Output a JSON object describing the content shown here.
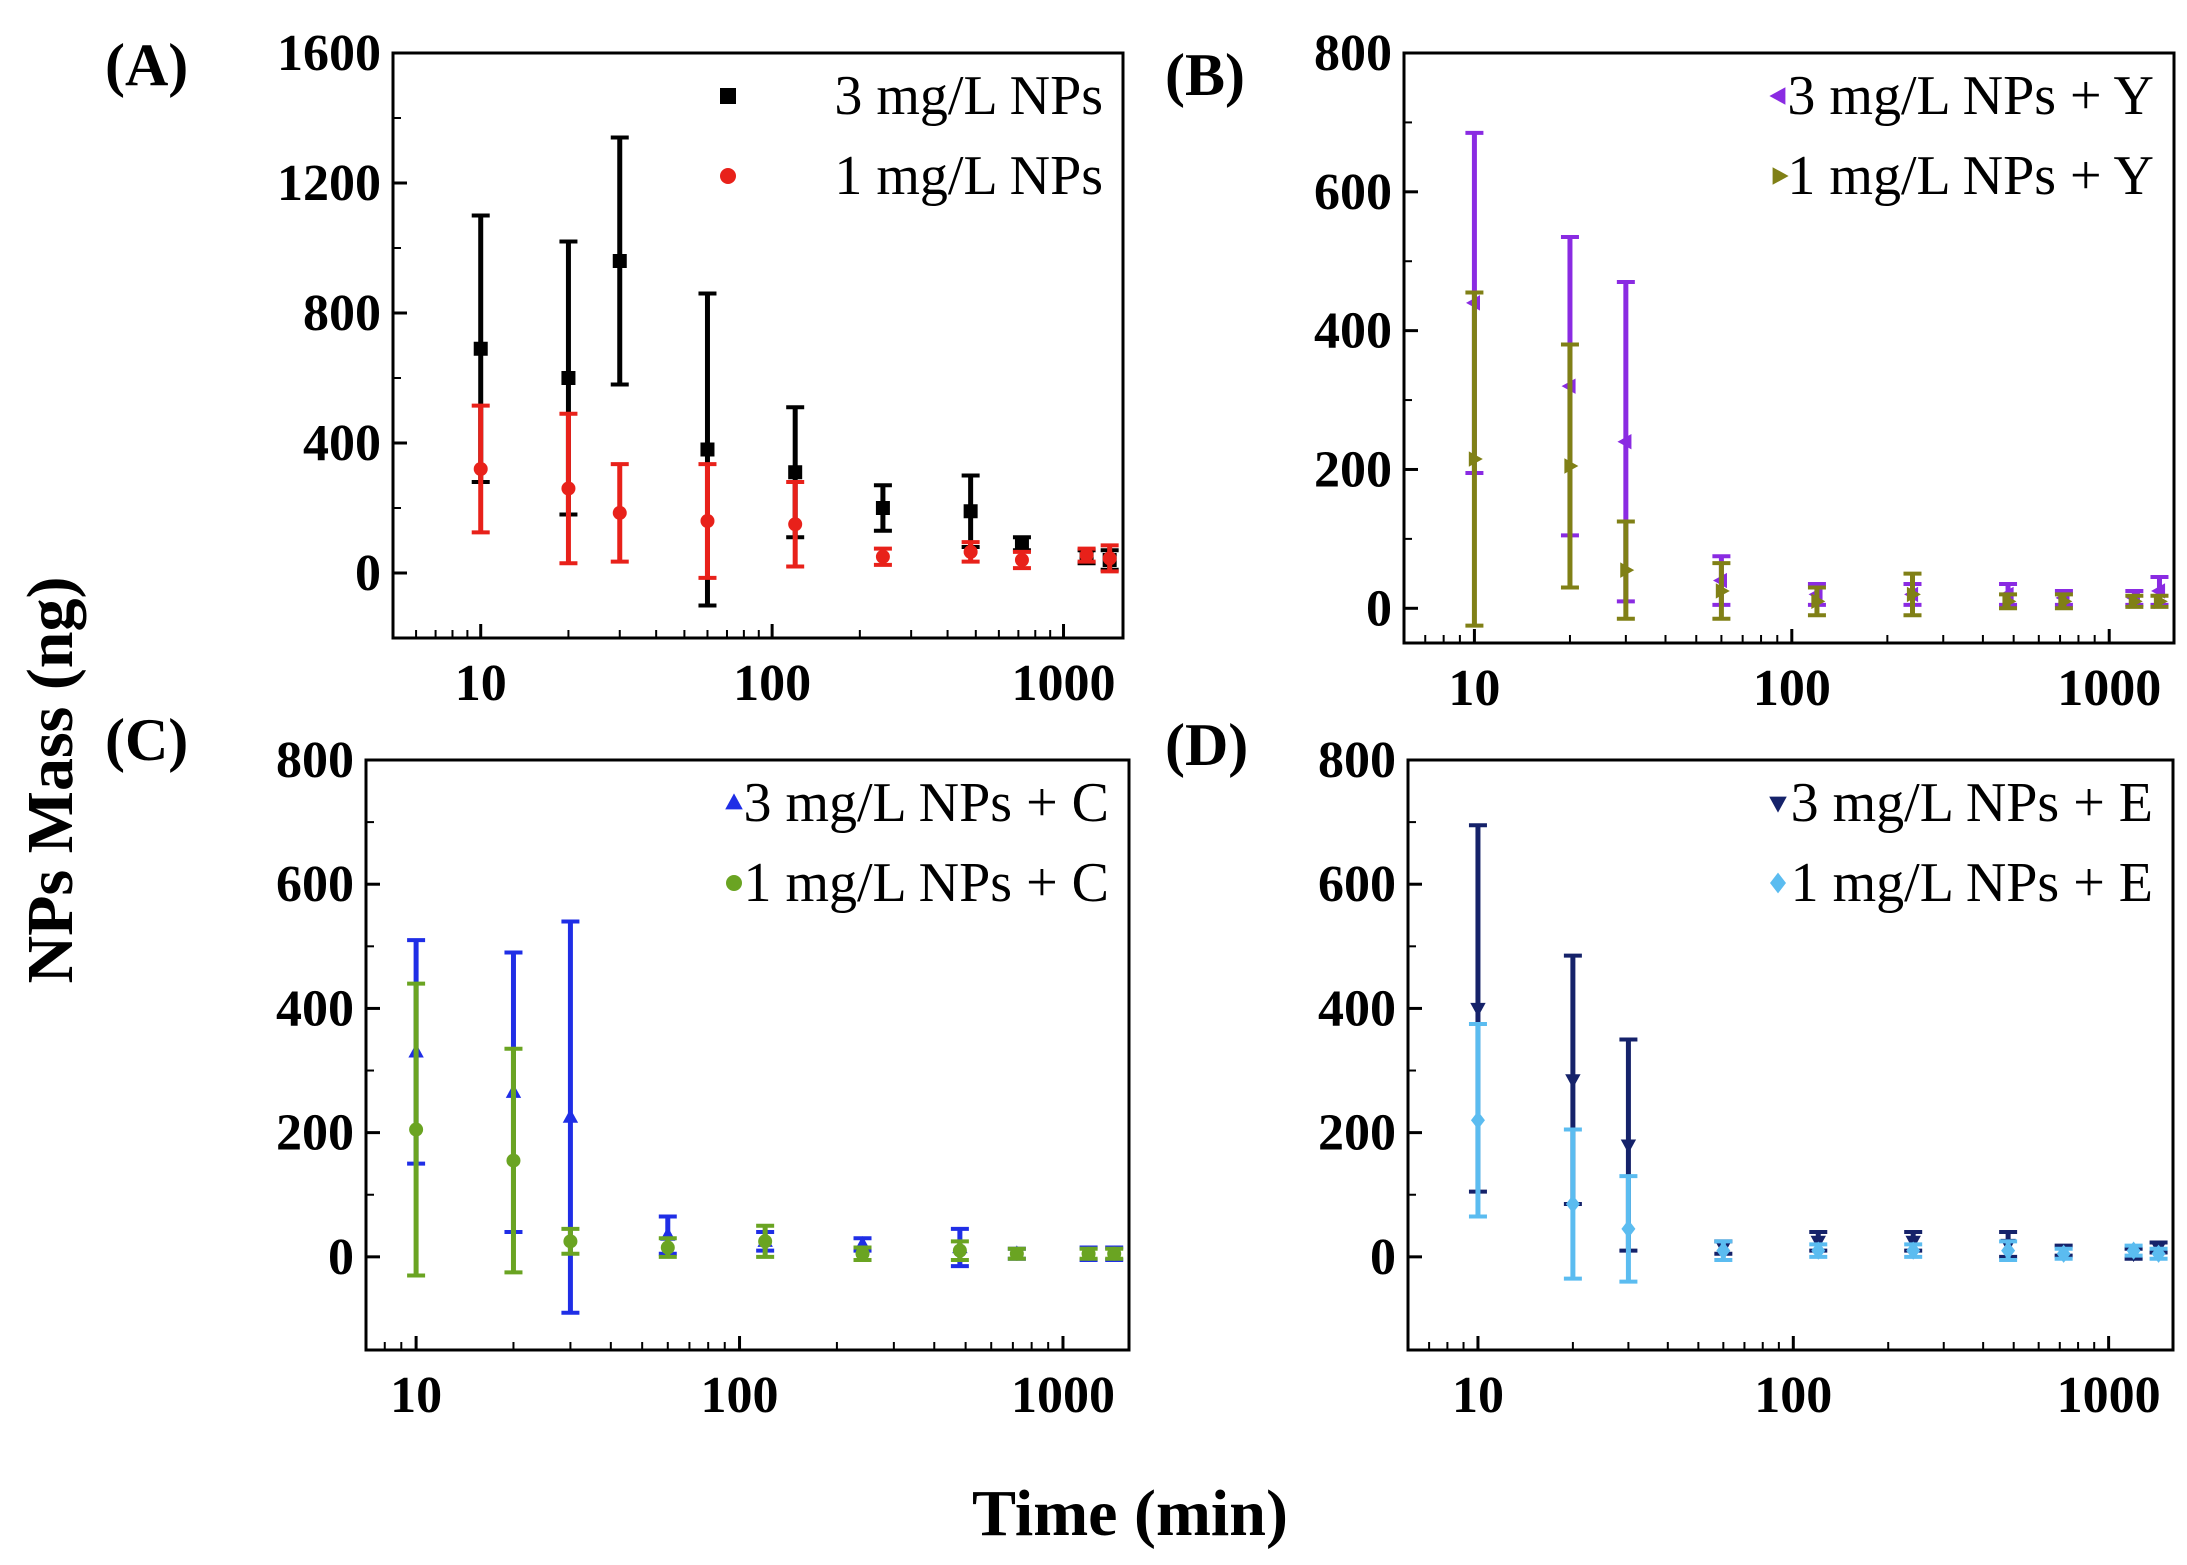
{
  "figure": {
    "xlabel": "Time (min)",
    "ylabel": "NPs Mass (ng)"
  },
  "chart_data": [
    {
      "type": "scatter",
      "panel_label": "(A)",
      "x_scale": "log",
      "xlim": [
        5,
        1600
      ],
      "ylim": [
        -200,
        1600
      ],
      "x_ticks": [
        10,
        100,
        1000
      ],
      "x_tick_labels": [
        "10",
        "100",
        "1000"
      ],
      "y_ticks": [
        0,
        400,
        800,
        1200,
        1600
      ],
      "y_tick_labels": [
        "0",
        "400",
        "800",
        "1200",
        "1600"
      ],
      "legend_position": "top-right",
      "series": [
        {
          "name": "3 mg/L NPs",
          "marker": "square",
          "color": "#000000",
          "x": [
            10,
            20,
            30,
            60,
            120,
            240,
            480,
            720,
            1200,
            1440
          ],
          "y": [
            690,
            600,
            960,
            380,
            310,
            200,
            190,
            90,
            50,
            40
          ],
          "err": [
            410,
            420,
            380,
            480,
            200,
            70,
            110,
            20,
            20,
            30
          ]
        },
        {
          "name": "1 mg/L NPs",
          "marker": "circle",
          "color": "#e8211a",
          "x": [
            10,
            20,
            30,
            60,
            120,
            240,
            480,
            720,
            1200,
            1440
          ],
          "y": [
            320,
            260,
            185,
            160,
            150,
            50,
            65,
            40,
            55,
            45
          ],
          "err": [
            195,
            230,
            150,
            175,
            130,
            25,
            30,
            25,
            20,
            40
          ]
        }
      ]
    },
    {
      "type": "scatter",
      "panel_label": "(B)",
      "x_scale": "log",
      "xlim": [
        6,
        1600
      ],
      "ylim": [
        -50,
        800
      ],
      "x_ticks": [
        10,
        100,
        1000
      ],
      "x_tick_labels": [
        "10",
        "100",
        "1000"
      ],
      "y_ticks": [
        0,
        200,
        400,
        600,
        800
      ],
      "y_tick_labels": [
        "0",
        "200",
        "400",
        "600",
        "800"
      ],
      "legend_position": "top-right",
      "series": [
        {
          "name": "3 mg/L NPs + Y",
          "marker": "triangle-left",
          "color": "#8a2be2",
          "x": [
            10,
            20,
            30,
            60,
            120,
            240,
            480,
            720,
            1200,
            1440
          ],
          "y": [
            440,
            320,
            240,
            40,
            20,
            20,
            20,
            15,
            15,
            25
          ],
          "err": [
            245,
            215,
            230,
            35,
            15,
            15,
            15,
            10,
            10,
            20
          ]
        },
        {
          "name": "1 mg/L NPs + Y",
          "marker": "triangle-right",
          "color": "#808016",
          "x": [
            10,
            20,
            30,
            60,
            120,
            240,
            480,
            720,
            1200,
            1440
          ],
          "y": [
            215,
            205,
            55,
            25,
            10,
            20,
            10,
            10,
            10,
            10
          ],
          "err": [
            240,
            175,
            70,
            40,
            20,
            30,
            10,
            10,
            8,
            8
          ]
        }
      ]
    },
    {
      "type": "scatter",
      "panel_label": "(C)",
      "x_scale": "log",
      "xlim": [
        7,
        1600
      ],
      "ylim": [
        -150,
        800
      ],
      "x_ticks": [
        10,
        100,
        1000
      ],
      "x_tick_labels": [
        "10",
        "100",
        "1000"
      ],
      "y_ticks": [
        0,
        200,
        400,
        600,
        800
      ],
      "y_tick_labels": [
        "0",
        "200",
        "400",
        "600",
        "800"
      ],
      "legend_position": "top-right",
      "series": [
        {
          "name": "3 mg/L NPs + C",
          "marker": "triangle-up",
          "color": "#1f2ee6",
          "x": [
            10,
            20,
            30,
            60,
            120,
            240,
            480,
            720,
            1200,
            1440
          ],
          "y": [
            330,
            265,
            225,
            35,
            25,
            20,
            15,
            5,
            5,
            5
          ],
          "err": [
            180,
            225,
            315,
            30,
            15,
            10,
            30,
            8,
            10,
            10
          ]
        },
        {
          "name": "1 mg/L NPs + C",
          "marker": "circle",
          "color": "#6aa422",
          "x": [
            10,
            20,
            30,
            60,
            120,
            240,
            480,
            720,
            1200,
            1440
          ],
          "y": [
            205,
            155,
            25,
            15,
            25,
            5,
            10,
            5,
            5,
            5
          ],
          "err": [
            235,
            180,
            20,
            15,
            25,
            10,
            15,
            8,
            8,
            8
          ]
        }
      ]
    },
    {
      "type": "scatter",
      "panel_label": "(D)",
      "x_scale": "log",
      "xlim": [
        6,
        1600
      ],
      "ylim": [
        -150,
        800
      ],
      "x_ticks": [
        10,
        100,
        1000
      ],
      "x_tick_labels": [
        "10",
        "100",
        "1000"
      ],
      "y_ticks": [
        0,
        200,
        400,
        600,
        800
      ],
      "y_tick_labels": [
        "0",
        "200",
        "400",
        "600",
        "800"
      ],
      "legend_position": "top-right",
      "series": [
        {
          "name": "3 mg/L NPs + E",
          "marker": "triangle-down",
          "color": "#15226a",
          "x": [
            10,
            20,
            30,
            60,
            120,
            240,
            480,
            720,
            1200,
            1440
          ],
          "y": [
            400,
            285,
            180,
            15,
            25,
            25,
            20,
            10,
            5,
            15
          ],
          "err": [
            295,
            200,
            170,
            10,
            15,
            15,
            20,
            8,
            8,
            8
          ]
        },
        {
          "name": "1 mg/L NPs + E",
          "marker": "diamond",
          "color": "#5bbcf0",
          "x": [
            10,
            20,
            30,
            60,
            120,
            240,
            480,
            720,
            1200,
            1440
          ],
          "y": [
            220,
            85,
            45,
            10,
            10,
            10,
            10,
            5,
            10,
            5
          ],
          "err": [
            155,
            120,
            85,
            15,
            10,
            10,
            15,
            8,
            8,
            8
          ]
        }
      ]
    }
  ]
}
